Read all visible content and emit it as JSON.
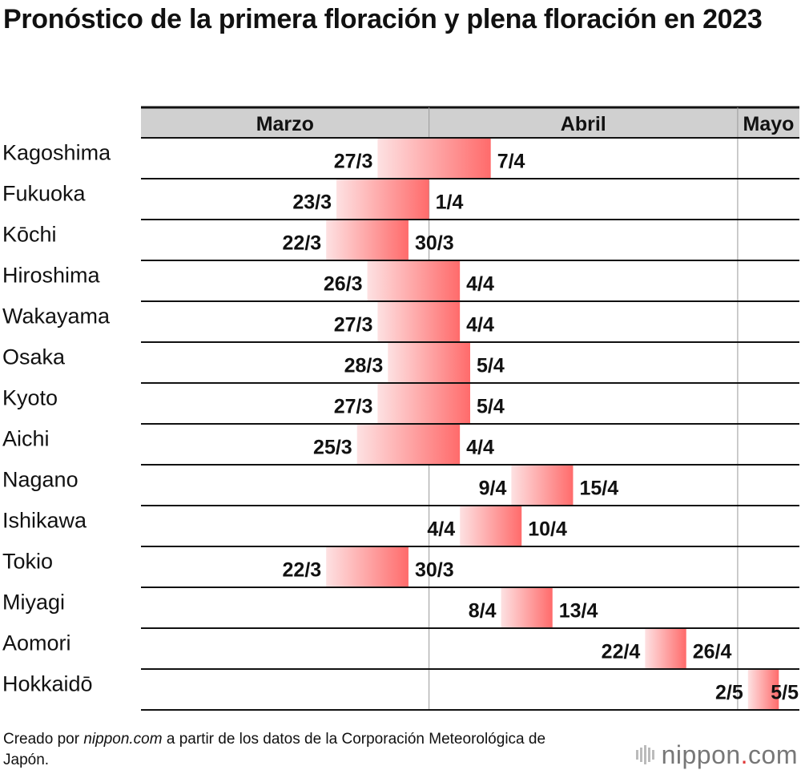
{
  "chart_data": {
    "type": "bar",
    "title": "Pronóstico de la primera floración y plena floración en 2023",
    "months": [
      "Marzo",
      "Abril",
      "Mayo"
    ],
    "x_range": [
      "2023-03-04",
      "2023-05-07"
    ],
    "bar_gradient": [
      "#fde1e2",
      "#ff6b6b"
    ],
    "series": [
      {
        "city": "Kagoshima",
        "start": "27/3",
        "end": "7/4"
      },
      {
        "city": "Fukuoka",
        "start": "23/3",
        "end": "1/4"
      },
      {
        "city": "Kōchi",
        "start": "22/3",
        "end": "30/3"
      },
      {
        "city": "Hiroshima",
        "start": "26/3",
        "end": "4/4"
      },
      {
        "city": "Wakayama",
        "start": "27/3",
        "end": "4/4"
      },
      {
        "city": "Osaka",
        "start": "28/3",
        "end": "5/4"
      },
      {
        "city": "Kyoto",
        "start": "27/3",
        "end": "5/4"
      },
      {
        "city": "Aichi",
        "start": "25/3",
        "end": "4/4"
      },
      {
        "city": "Nagano",
        "start": "9/4",
        "end": "15/4"
      },
      {
        "city": "Ishikawa",
        "start": "4/4",
        "end": "10/4"
      },
      {
        "city": "Tokio",
        "start": "22/3",
        "end": "30/3"
      },
      {
        "city": "Miyagi",
        "start": "8/4",
        "end": "13/4"
      },
      {
        "city": "Aomori",
        "start": "22/4",
        "end": "26/4"
      },
      {
        "city": "Hokkaidō",
        "start": "2/5",
        "end": "5/5"
      }
    ]
  },
  "footer": {
    "prefix": "Creado por ",
    "source": "nippon.com",
    "suffix": " a partir de los datos de la Corporación Meteorológica de Japón."
  },
  "brand": {
    "name": "nippon",
    "dot": ".",
    "tld": "com",
    "icon": "nippon-logo-icon"
  }
}
